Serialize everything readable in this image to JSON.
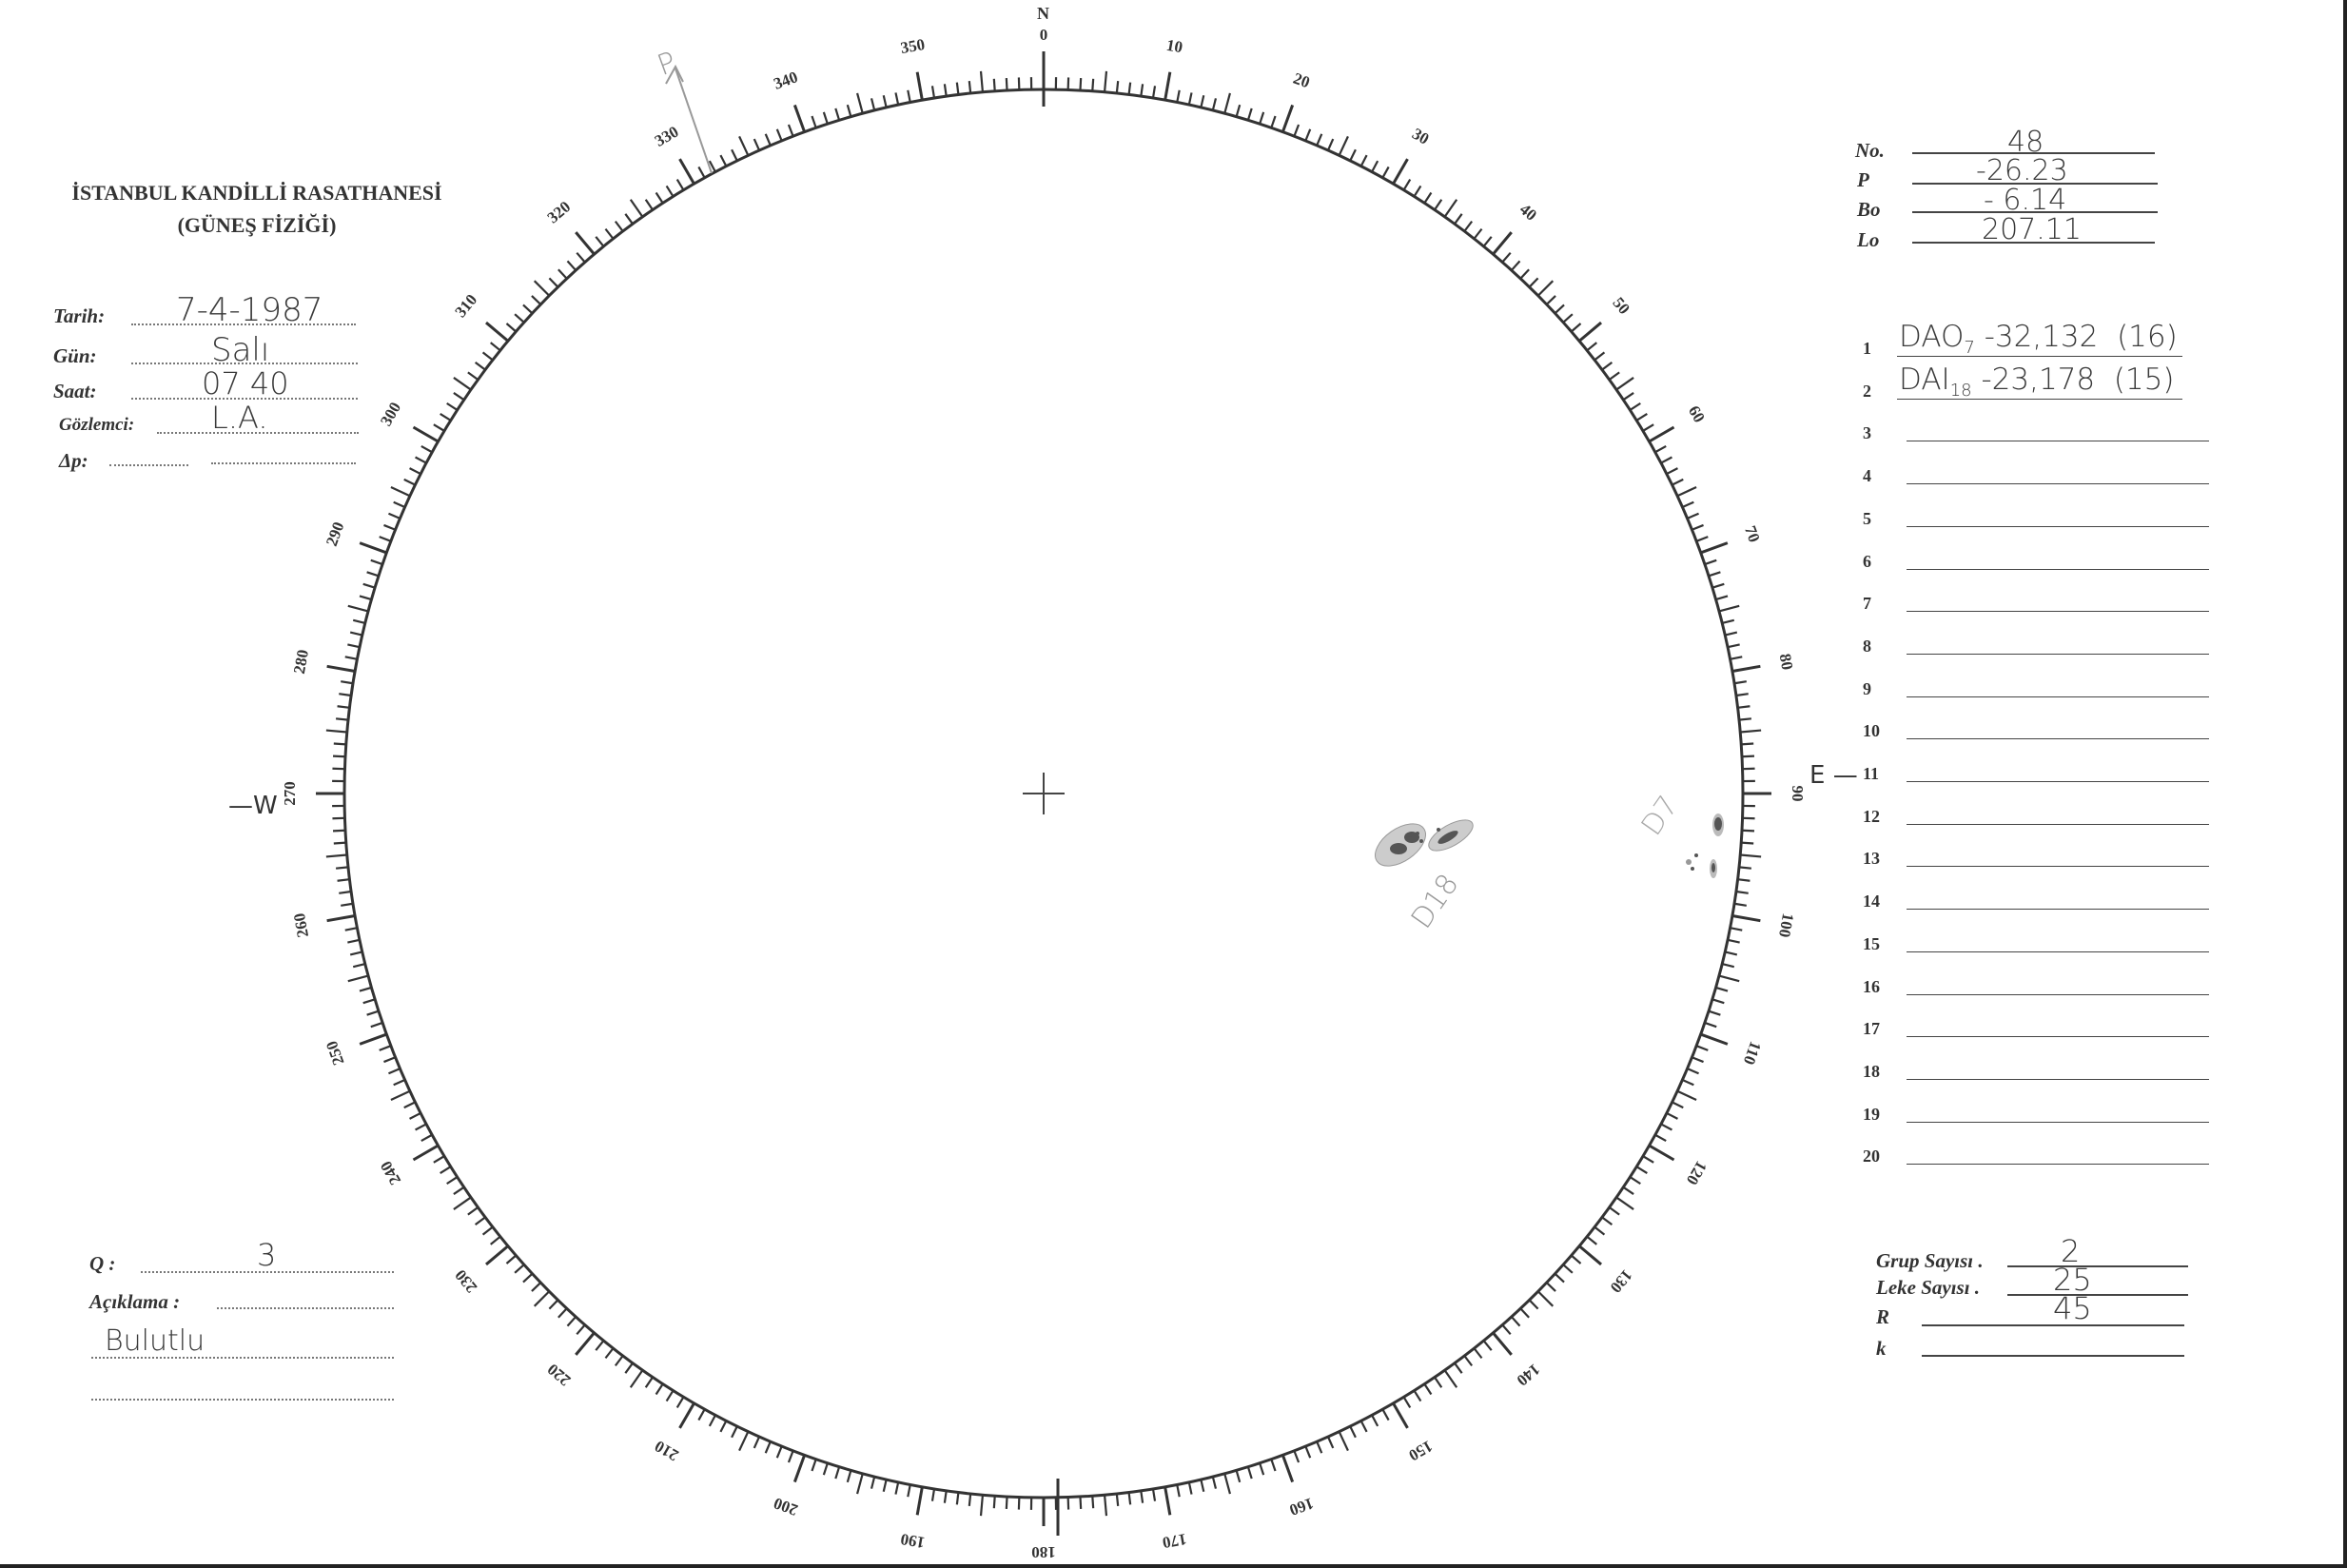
{
  "header": {
    "institution": "İSTANBUL KANDİLLİ RASATHANESİ",
    "department": "(GÜNEŞ FİZİĞİ)"
  },
  "observation": {
    "date_label": "Tarih:",
    "date_value": "7-4-1987",
    "day_label": "Gün:",
    "day_value": "Salı",
    "time_label": "Saat:",
    "time_value": "07 40",
    "observer_label": "Gözlemci:",
    "observer_value": "L.A.",
    "delta_p_label": "Δp:",
    "delta_p_value": ""
  },
  "parameters": {
    "no_label": "No.",
    "no_value": "48",
    "p_label": "P",
    "p_value": "-26.23",
    "bo_label": "Bo",
    "bo_value": "- 6.14",
    "lo_label": "Lo",
    "lo_value": "207.11"
  },
  "groups": [
    {
      "n": "1",
      "text": "DAO",
      "sub": "7",
      "coords": "-32,132",
      "count": "(16)"
    },
    {
      "n": "2",
      "text": "DAI",
      "sub": "18",
      "coords": "-23,178",
      "count": "(15)"
    },
    {
      "n": "3"
    },
    {
      "n": "4"
    },
    {
      "n": "5"
    },
    {
      "n": "6"
    },
    {
      "n": "7"
    },
    {
      "n": "8"
    },
    {
      "n": "9"
    },
    {
      "n": "10"
    },
    {
      "n": "11"
    },
    {
      "n": "12"
    },
    {
      "n": "13"
    },
    {
      "n": "14"
    },
    {
      "n": "15"
    },
    {
      "n": "16"
    },
    {
      "n": "17"
    },
    {
      "n": "18"
    },
    {
      "n": "19"
    },
    {
      "n": "20"
    }
  ],
  "summary": {
    "group_count_label": "Grup Sayısı .",
    "group_count_value": "2",
    "spot_count_label": "Leke Sayısı .",
    "spot_count_value": "25",
    "r_label": "R",
    "r_value": "45",
    "k_label": "k",
    "k_value": ""
  },
  "quality": {
    "q_label": "Q :",
    "q_value": "3",
    "note_label": "Açıklama :",
    "note_value": "Bulutlu"
  },
  "disk": {
    "north": "N",
    "east": "E",
    "west": "W",
    "axis_label": "P",
    "scale": {
      "minor_step_deg": 1,
      "label_step_deg": 10
    },
    "sunspot_group_labels": [
      "D18",
      "D7"
    ]
  },
  "colors": {
    "ink": "#333333",
    "pencil": "#9a9a9a",
    "spot": "#555555"
  }
}
